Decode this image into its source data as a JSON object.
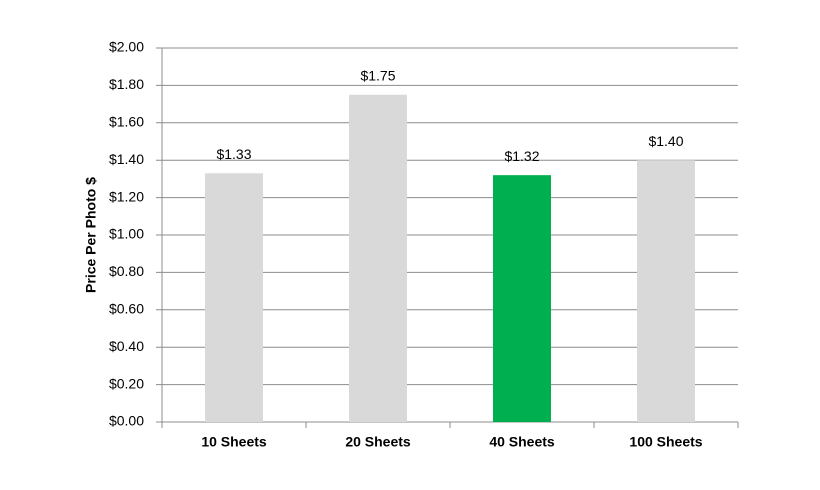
{
  "chart_data": {
    "type": "bar",
    "y_label": "Price Per Photo $",
    "categories": [
      "10 Sheets",
      "20 Sheets",
      "40 Sheets",
      "100 Sheets"
    ],
    "values": [
      1.33,
      1.75,
      1.32,
      1.4
    ],
    "value_labels": [
      "$1.33",
      "$1.75",
      "$1.32",
      "$1.40"
    ],
    "colors": [
      "#d9d9d9",
      "#d9d9d9",
      "#00b050",
      "#d9d9d9"
    ],
    "ylim": [
      0,
      2
    ],
    "yticks": [
      {
        "value": 0,
        "label": "$0.00"
      },
      {
        "value": 0.2,
        "label": "$0.20"
      },
      {
        "value": 0.4,
        "label": "$0.40"
      },
      {
        "value": 0.6,
        "label": "$0.60"
      },
      {
        "value": 0.8,
        "label": "$0.80"
      },
      {
        "value": 1.0,
        "label": "$1.00"
      },
      {
        "value": 1.2,
        "label": "$1.20"
      },
      {
        "value": 1.4,
        "label": "$1.40"
      },
      {
        "value": 1.6,
        "label": "$1.60"
      },
      {
        "value": 1.8,
        "label": "$1.80"
      },
      {
        "value": 2.0,
        "label": "$2.00"
      }
    ],
    "grid": true
  }
}
